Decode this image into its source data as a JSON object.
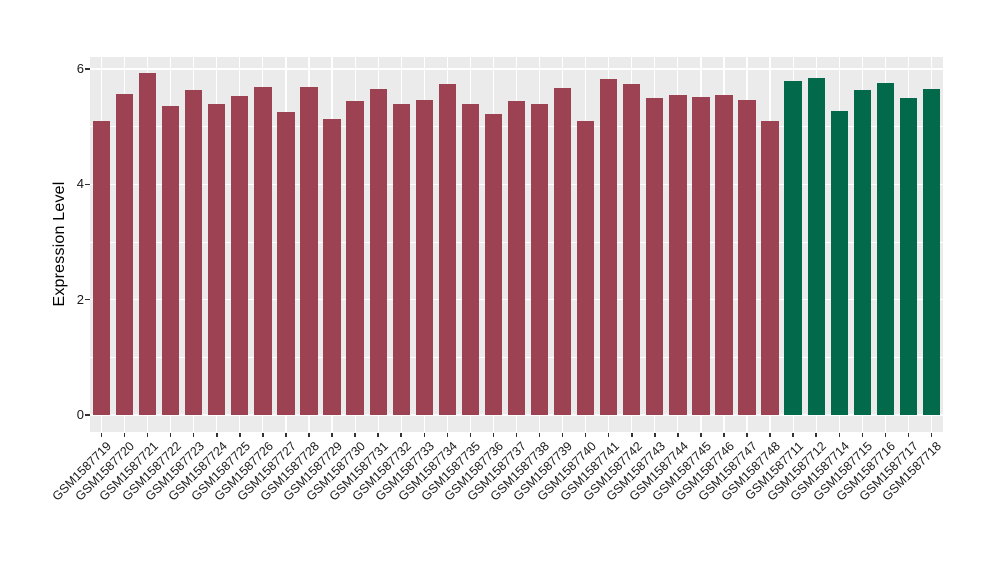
{
  "chart_data": {
    "type": "bar",
    "title": "",
    "xlabel": "",
    "ylabel": "Expression Level",
    "ylim": [
      0,
      6.5
    ],
    "yticks": [
      0,
      2,
      4,
      6
    ],
    "yticks_minor": [
      1,
      3,
      5
    ],
    "grid": "white major and minor horizontal gridlines plus vertical category gridlines on gray panel",
    "legend": "none",
    "categories": [
      "GSM1587719",
      "GSM1587720",
      "GSM1587721",
      "GSM1587722",
      "GSM1587723",
      "GSM1587724",
      "GSM1587725",
      "GSM1587726",
      "GSM1587727",
      "GSM1587728",
      "GSM1587729",
      "GSM1587730",
      "GSM1587731",
      "GSM1587732",
      "GSM1587733",
      "GSM1587734",
      "GSM1587735",
      "GSM1587736",
      "GSM1587737",
      "GSM1587738",
      "GSM1587739",
      "GSM1587740",
      "GSM1587741",
      "GSM1587742",
      "GSM1587743",
      "GSM1587744",
      "GSM1587745",
      "GSM1587746",
      "GSM1587747",
      "GSM1587748",
      "GSM1587711",
      "GSM1587712",
      "GSM1587714",
      "GSM1587715",
      "GSM1587716",
      "GSM1587717",
      "GSM1587718"
    ],
    "values": [
      5.1,
      5.57,
      5.93,
      5.36,
      5.64,
      5.4,
      5.53,
      5.69,
      5.26,
      5.69,
      5.13,
      5.45,
      5.66,
      5.4,
      5.46,
      5.74,
      5.39,
      5.22,
      5.44,
      5.4,
      5.67,
      5.1,
      5.83,
      5.74,
      5.5,
      5.55,
      5.51,
      5.55,
      5.47,
      5.1,
      5.79,
      5.85,
      5.28,
      5.64,
      5.76,
      5.5,
      5.66
    ],
    "bar_groups": [
      {
        "color": "#9C4252",
        "start_index": 0,
        "end_index": 29
      },
      {
        "color": "#02694A",
        "start_index": 30,
        "end_index": 36
      }
    ]
  },
  "style": {
    "page_background": "#FFFFFF",
    "panel_background": "#EBEBEB",
    "gridline_color": "#FFFFFF",
    "axis_text_color": "#1A1A1A",
    "axis_title_color": "#000000",
    "tick_mark_color": "#333333"
  }
}
